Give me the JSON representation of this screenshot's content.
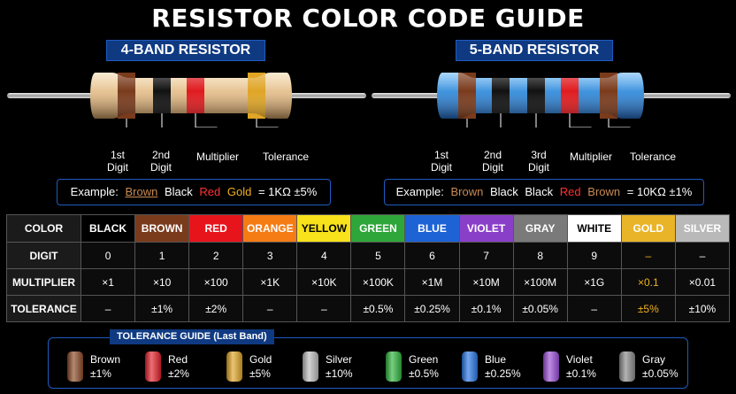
{
  "title": "RESISTOR COLOR CODE GUIDE",
  "four_band": {
    "heading": "4-BAND RESISTOR",
    "labels": [
      [
        "1st",
        "Digit"
      ],
      [
        "2nd",
        "Digit"
      ],
      [
        "Multiplier"
      ],
      [
        "Tolerance"
      ]
    ],
    "example": {
      "prefix": "Example:",
      "bands": [
        {
          "text": "Brown",
          "color": "#c98a52"
        },
        {
          "text": "Black",
          "color": "#ffffff"
        },
        {
          "text": "Red",
          "color": "#ff3030"
        },
        {
          "text": "Gold",
          "color": "#f0b020"
        }
      ],
      "result": "= 1KΩ ±5%"
    }
  },
  "five_band": {
    "heading": "5-BAND RESISTOR",
    "labels": [
      [
        "1st",
        "Digit"
      ],
      [
        "2nd",
        "Digit"
      ],
      [
        "3rd",
        "Digit"
      ],
      [
        "Multiplier"
      ],
      [
        "Tolerance"
      ]
    ],
    "example": {
      "prefix": "Example:",
      "bands": [
        {
          "text": "Brown",
          "color": "#c98a52"
        },
        {
          "text": "Black",
          "color": "#ffffff"
        },
        {
          "text": "Black",
          "color": "#ffffff"
        },
        {
          "text": "Red",
          "color": "#ff3030"
        },
        {
          "text": "Brown",
          "color": "#c98a52"
        }
      ],
      "result": "= 10KΩ ±1%"
    }
  },
  "table": {
    "row_headers": [
      "COLOR",
      "DIGIT",
      "MULTIPLIER",
      "TOLERANCE"
    ],
    "colors": [
      {
        "name": "BLACK",
        "bg": "#000000",
        "fg": "#ffffff",
        "digit": "0",
        "multiplier": "×1",
        "tolerance": "–"
      },
      {
        "name": "BROWN",
        "bg": "#7a3b1c",
        "fg": "#ffffff",
        "digit": "1",
        "multiplier": "×10",
        "tolerance": "±1%"
      },
      {
        "name": "RED",
        "bg": "#e8141c",
        "fg": "#ffffff",
        "digit": "2",
        "multiplier": "×100",
        "tolerance": "±2%"
      },
      {
        "name": "ORANGE",
        "bg": "#f57b15",
        "fg": "#ffffff",
        "digit": "3",
        "multiplier": "×1K",
        "tolerance": "–"
      },
      {
        "name": "YELLOW",
        "bg": "#f7e21b",
        "fg": "#000000",
        "digit": "4",
        "multiplier": "×10K",
        "tolerance": "–"
      },
      {
        "name": "GREEN",
        "bg": "#2ea63a",
        "fg": "#ffffff",
        "digit": "5",
        "multiplier": "×100K",
        "tolerance": "±0.5%"
      },
      {
        "name": "BLUE",
        "bg": "#1d63d6",
        "fg": "#ffffff",
        "digit": "6",
        "multiplier": "×1M",
        "tolerance": "±0.25%"
      },
      {
        "name": "VIOLET",
        "bg": "#8a3fc9",
        "fg": "#ffffff",
        "digit": "7",
        "multiplier": "×10M",
        "tolerance": "±0.1%"
      },
      {
        "name": "GRAY",
        "bg": "#7a7a7a",
        "fg": "#ffffff",
        "digit": "8",
        "multiplier": "×100M",
        "tolerance": "±0.05%"
      },
      {
        "name": "WHITE",
        "bg": "#ffffff",
        "fg": "#000000",
        "digit": "9",
        "multiplier": "×1G",
        "tolerance": "–"
      },
      {
        "name": "GOLD",
        "bg": "#e9b428",
        "fg": "#ffffff",
        "digit": "–",
        "multiplier": "×0.1",
        "tolerance": "±5%",
        "gold": true
      },
      {
        "name": "SILVER",
        "bg": "#b9b9b9",
        "fg": "#ffffff",
        "digit": "–",
        "multiplier": "×0.01",
        "tolerance": "±10%"
      }
    ]
  },
  "tolerance_guide": {
    "title": "TOLERANCE GUIDE (Last Band)",
    "items": [
      {
        "name": "Brown",
        "value": "±1%",
        "color": "#8b4a26"
      },
      {
        "name": "Red",
        "value": "±2%",
        "color": "#e5202a"
      },
      {
        "name": "Gold",
        "value": "±5%",
        "color": "#e0a526"
      },
      {
        "name": "Silver",
        "value": "±10%",
        "color": "#bdbdbd"
      },
      {
        "name": "Green",
        "value": "±0.5%",
        "color": "#2fb53d"
      },
      {
        "name": "Blue",
        "value": "±0.25%",
        "color": "#2a78e6"
      },
      {
        "name": "Violet",
        "value": "±0.1%",
        "color": "#9a4ed6"
      },
      {
        "name": "Gray",
        "value": "±0.05%",
        "color": "#8a8a8a"
      }
    ]
  }
}
